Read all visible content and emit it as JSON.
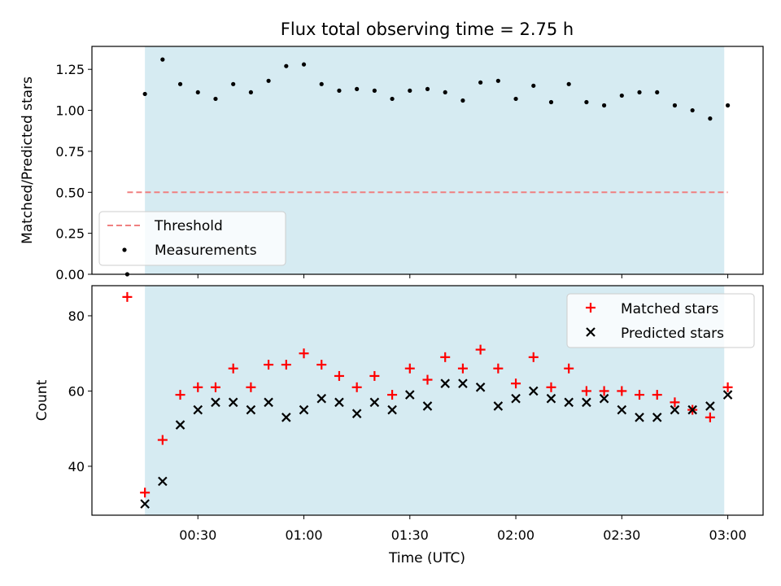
{
  "title": "Flux total observing time = 2.75 h",
  "colors": {
    "shade": "#add8e6",
    "threshold": "#f08080",
    "measurement": "#000000",
    "matched": "#ff0000",
    "predicted": "#000000"
  },
  "chart_data": [
    {
      "type": "scatter",
      "ylabel": "Matched/Predicted stars",
      "ylim": [
        0,
        1.39
      ],
      "xlim": [
        "00:00",
        "03:10"
      ],
      "yticks": [
        "0.00",
        "0.25",
        "0.50",
        "0.75",
        "1.00",
        "1.25"
      ],
      "shaded_interval": [
        "00:15",
        "02:59"
      ],
      "legend": [
        "Threshold",
        "Measurements"
      ],
      "legend_position": "lower-left",
      "threshold": {
        "name": "Threshold",
        "y": 0.5,
        "x_range": [
          "00:10",
          "03:00"
        ]
      },
      "series": [
        {
          "name": "Measurements",
          "x": [
            "00:10",
            "00:15",
            "00:20",
            "00:25",
            "00:30",
            "00:35",
            "00:40",
            "00:45",
            "00:50",
            "00:55",
            "01:00",
            "01:05",
            "01:10",
            "01:15",
            "01:20",
            "01:25",
            "01:30",
            "01:35",
            "01:40",
            "01:45",
            "01:50",
            "01:55",
            "02:00",
            "02:05",
            "02:10",
            "02:15",
            "02:20",
            "02:25",
            "02:30",
            "02:35",
            "02:40",
            "02:45",
            "02:50",
            "02:55",
            "03:00"
          ],
          "y": [
            0.0,
            1.1,
            1.31,
            1.16,
            1.11,
            1.07,
            1.16,
            1.11,
            1.18,
            1.27,
            1.28,
            1.16,
            1.12,
            1.13,
            1.12,
            1.07,
            1.12,
            1.13,
            1.11,
            1.06,
            1.17,
            1.18,
            1.07,
            1.15,
            1.05,
            1.16,
            1.05,
            1.03,
            1.09,
            1.11,
            1.11,
            1.03,
            1.0,
            0.95,
            1.03
          ]
        }
      ]
    },
    {
      "type": "scatter",
      "title": "",
      "xlabel": "Time (UTC)",
      "ylabel": "Count",
      "ylim": [
        27,
        88
      ],
      "xlim": [
        "00:00",
        "03:10"
      ],
      "xticks": [
        "00:30",
        "01:00",
        "01:30",
        "02:00",
        "02:30",
        "03:00"
      ],
      "yticks": [
        "40",
        "60",
        "80"
      ],
      "shaded_interval": [
        "00:15",
        "02:59"
      ],
      "legend": [
        "Matched stars",
        "Predicted stars"
      ],
      "legend_position": "upper-right",
      "series": [
        {
          "name": "Matched stars",
          "marker": "+",
          "x": [
            "00:10",
            "00:15",
            "00:20",
            "00:25",
            "00:30",
            "00:35",
            "00:40",
            "00:45",
            "00:50",
            "00:55",
            "01:00",
            "01:05",
            "01:10",
            "01:15",
            "01:20",
            "01:25",
            "01:30",
            "01:35",
            "01:40",
            "01:45",
            "01:50",
            "01:55",
            "02:00",
            "02:05",
            "02:10",
            "02:15",
            "02:20",
            "02:25",
            "02:30",
            "02:35",
            "02:40",
            "02:45",
            "02:50",
            "02:55",
            "03:00"
          ],
          "y": [
            85,
            33,
            47,
            59,
            61,
            61,
            66,
            61,
            67,
            67,
            70,
            67,
            64,
            61,
            64,
            59,
            66,
            63,
            69,
            66,
            71,
            66,
            62,
            69,
            61,
            66,
            60,
            60,
            60,
            59,
            59,
            57,
            55,
            53,
            61
          ]
        },
        {
          "name": "Predicted stars",
          "marker": "x",
          "x": [
            "00:15",
            "00:20",
            "00:25",
            "00:30",
            "00:35",
            "00:40",
            "00:45",
            "00:50",
            "00:55",
            "01:00",
            "01:05",
            "01:10",
            "01:15",
            "01:20",
            "01:25",
            "01:30",
            "01:35",
            "01:40",
            "01:45",
            "01:50",
            "01:55",
            "02:00",
            "02:05",
            "02:10",
            "02:15",
            "02:20",
            "02:25",
            "02:30",
            "02:35",
            "02:40",
            "02:45",
            "02:50",
            "02:55",
            "03:00"
          ],
          "y": [
            30,
            36,
            51,
            55,
            57,
            57,
            55,
            57,
            53,
            55,
            58,
            57,
            54,
            57,
            55,
            59,
            56,
            62,
            62,
            61,
            56,
            58,
            60,
            58,
            57,
            57,
            58,
            55,
            53,
            53,
            55,
            55,
            56,
            59
          ]
        }
      ]
    }
  ]
}
